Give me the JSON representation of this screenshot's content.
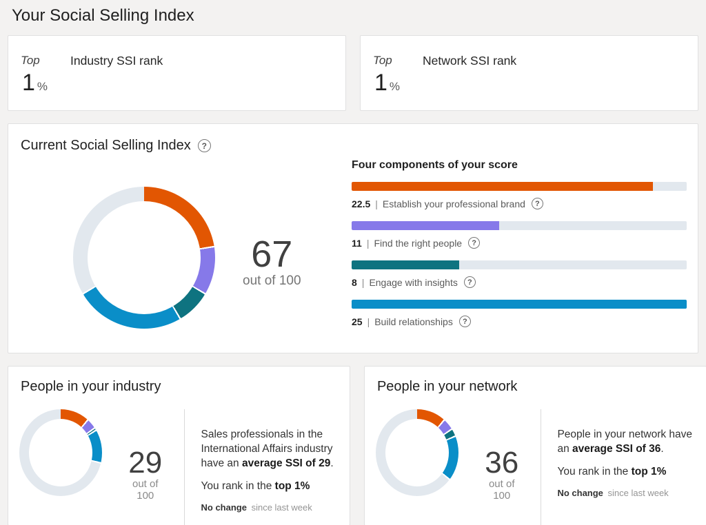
{
  "page": {
    "title": "Your Social Selling Index"
  },
  "icons": {
    "help": "?"
  },
  "colors": {
    "brand_orange": "#e25602",
    "brand_purple": "#8679e9",
    "brand_teal": "#0e7380",
    "brand_blue": "#0a8ec8",
    "track_gray": "#e2e8ee"
  },
  "rank_cards": [
    {
      "prefix": "Top",
      "label": "Industry SSI rank",
      "value": "1",
      "unit": "%"
    },
    {
      "prefix": "Top",
      "label": "Network SSI rank",
      "value": "1",
      "unit": "%"
    }
  ],
  "current_index": {
    "title": "Current Social Selling Index",
    "score": "67",
    "out_of": "out of 100",
    "components_title": "Four components of your score",
    "separator": "|",
    "components": [
      {
        "value": "22.5",
        "label": "Establish your professional brand",
        "score": 22.5,
        "max": 25,
        "color": "#e25602"
      },
      {
        "value": "11",
        "label": "Find the right people",
        "score": 11,
        "max": 25,
        "color": "#8679e9"
      },
      {
        "value": "8",
        "label": "Engage with insights",
        "score": 8,
        "max": 25,
        "color": "#0e7380"
      },
      {
        "value": "25",
        "label": "Build relationships",
        "score": 25,
        "max": 25,
        "color": "#0a8ec8"
      }
    ],
    "donut": {
      "total": 100,
      "segments": [
        {
          "name": "Establish your professional brand",
          "value": 22.5,
          "color": "#e25602"
        },
        {
          "name": "Find the right people",
          "value": 11,
          "color": "#8679e9"
        },
        {
          "name": "Engage with insights",
          "value": 8,
          "color": "#0e7380"
        },
        {
          "name": "Build relationships",
          "value": 25,
          "color": "#0a8ec8"
        },
        {
          "name": "remaining",
          "value": 33.5,
          "color": "#e2e8ee"
        }
      ]
    }
  },
  "industry_card": {
    "title": "People in your industry",
    "score": "29",
    "out_of": "out of 100",
    "donut": {
      "total": 100,
      "segments": [
        {
          "name": "Establish your professional brand",
          "value": 11,
          "color": "#e25602"
        },
        {
          "name": "Find the right people",
          "value": 4,
          "color": "#8679e9"
        },
        {
          "name": "Engage with insights",
          "value": 1,
          "color": "#0e7380"
        },
        {
          "name": "Build relationships",
          "value": 13,
          "color": "#0a8ec8"
        },
        {
          "name": "remaining",
          "value": 71,
          "color": "#e2e8ee"
        }
      ]
    },
    "desc_pre": "Sales professionals in the International Affairs industry have an ",
    "desc_bold": "average SSI of 29",
    "desc_post": ".",
    "rank_pre": "You rank in the ",
    "rank_bold": "top 1%",
    "change_bold": "No change",
    "change_rest": " since last week"
  },
  "network_card": {
    "title": "People in your network",
    "score": "36",
    "out_of": "out of 100",
    "donut": {
      "total": 100,
      "segments": [
        {
          "name": "Establish your professional brand",
          "value": 11,
          "color": "#e25602"
        },
        {
          "name": "Find the right people",
          "value": 4.5,
          "color": "#8679e9"
        },
        {
          "name": "Engage with insights",
          "value": 3,
          "color": "#0e7380"
        },
        {
          "name": "Build relationships",
          "value": 17.5,
          "color": "#0a8ec8"
        },
        {
          "name": "remaining",
          "value": 64,
          "color": "#e2e8ee"
        }
      ]
    },
    "desc_pre": "People in your network have an ",
    "desc_bold": "average SSI of 36",
    "desc_post": ".",
    "rank_pre": "You rank in the ",
    "rank_bold": "top 1%",
    "change_bold": "No change",
    "change_rest": " since last week"
  },
  "chart_data": [
    {
      "type": "pie",
      "title": "Current Social Selling Index",
      "labels": [
        "Establish your professional brand",
        "Find the right people",
        "Engage with insights",
        "Build relationships",
        "remaining"
      ],
      "values": [
        22.5,
        11,
        8,
        25,
        33.5
      ],
      "colors": [
        "#e25602",
        "#8679e9",
        "#0e7380",
        "#0a8ec8",
        "#e2e8ee"
      ],
      "center_label": "67 out of 100"
    },
    {
      "type": "bar",
      "title": "Four components of your score",
      "categories": [
        "Establish your professional brand",
        "Find the right people",
        "Engage with insights",
        "Build relationships"
      ],
      "values": [
        22.5,
        11,
        8,
        25
      ],
      "xlim_per_bar": [
        0,
        25
      ],
      "colors": [
        "#e25602",
        "#8679e9",
        "#0e7380",
        "#0a8ec8"
      ]
    },
    {
      "type": "pie",
      "title": "People in your industry",
      "labels": [
        "Establish your professional brand",
        "Find the right people",
        "Engage with insights",
        "Build relationships",
        "remaining"
      ],
      "values": [
        11,
        4,
        1,
        13,
        71
      ],
      "colors": [
        "#e25602",
        "#8679e9",
        "#0e7380",
        "#0a8ec8",
        "#e2e8ee"
      ],
      "center_label": "29 out of 100"
    },
    {
      "type": "pie",
      "title": "People in your network",
      "labels": [
        "Establish your professional brand",
        "Find the right people",
        "Engage with insights",
        "Build relationships",
        "remaining"
      ],
      "values": [
        11,
        4.5,
        3,
        17.5,
        64
      ],
      "colors": [
        "#e25602",
        "#8679e9",
        "#0e7380",
        "#0a8ec8",
        "#e2e8ee"
      ],
      "center_label": "36 out of 100"
    }
  ]
}
